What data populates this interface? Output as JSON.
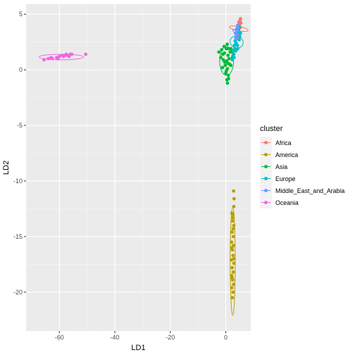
{
  "chart_data": {
    "type": "scatter",
    "title": "",
    "xlabel": "LD1",
    "ylabel": "LD2",
    "xlim": [
      -72,
      9
    ],
    "ylim": [
      -23.5,
      5.9
    ],
    "xticks": [
      -60,
      -40,
      -20,
      0
    ],
    "yticks": [
      5,
      0,
      -5,
      -10,
      -15,
      -20
    ],
    "grid": true,
    "background": "#ebebeb",
    "legend": {
      "title": "cluster",
      "placement": "right",
      "entries": [
        "Africa",
        "America",
        "Asia",
        "Europe",
        "Middle_East_and_Arabia",
        "Oceania"
      ]
    },
    "series": [
      {
        "name": "Africa",
        "color": "#F8766D",
        "points": [
          [
            4.2,
            3.2
          ],
          [
            4.6,
            3.6
          ],
          [
            4.9,
            4.1
          ],
          [
            5.1,
            4.4
          ],
          [
            5.3,
            4.6
          ],
          [
            4.4,
            3.9
          ],
          [
            4.8,
            3.4
          ],
          [
            5.2,
            3.8
          ],
          [
            4.0,
            2.9
          ],
          [
            4.7,
            4.3
          ],
          [
            5.0,
            3.0
          ],
          [
            4.3,
            3.5
          ],
          [
            5.4,
            4.2
          ],
          [
            4.5,
            4.0
          ],
          [
            3.9,
            3.3
          ],
          [
            4.8,
            2.8
          ]
        ],
        "ellipse": {
          "cx": 4.7,
          "cy": 3.7,
          "rx": 0.8,
          "ry": 0.85,
          "angle": -80
        }
      },
      {
        "name": "America",
        "color": "#B79F00",
        "points": [
          [
            2.8,
            -10.9
          ],
          [
            3.0,
            -11.6
          ],
          [
            2.9,
            -12.3
          ],
          [
            2.2,
            -12.9
          ],
          [
            2.6,
            -13.0
          ],
          [
            2.4,
            -13.6
          ],
          [
            2.9,
            -14.0
          ],
          [
            2.3,
            -14.6
          ],
          [
            2.7,
            -15.0
          ],
          [
            2.1,
            -15.5
          ],
          [
            2.8,
            -15.8
          ],
          [
            2.4,
            -16.2
          ],
          [
            2.6,
            -16.7
          ],
          [
            2.0,
            -17.1
          ],
          [
            2.9,
            -17.4
          ],
          [
            2.3,
            -17.8
          ],
          [
            2.7,
            -18.2
          ],
          [
            2.1,
            -18.5
          ],
          [
            2.5,
            -18.9
          ],
          [
            2.8,
            -19.3
          ],
          [
            2.2,
            -19.6
          ],
          [
            2.6,
            -20.0
          ],
          [
            2.4,
            -20.5
          ],
          [
            2.7,
            -14.3
          ],
          [
            2.2,
            -16.0
          ],
          [
            2.9,
            -17.0
          ],
          [
            2.5,
            -13.3
          ],
          [
            2.3,
            -18.7
          ]
        ],
        "ellipse": {
          "cx": 2.5,
          "cy": -17.2,
          "rx": 0.9,
          "ry": 4.9,
          "angle": 0
        }
      },
      {
        "name": "Asia",
        "color": "#00BA38",
        "points": [
          [
            -2.5,
            1.6
          ],
          [
            -1.5,
            1.8
          ],
          [
            -0.5,
            1.5
          ],
          [
            0.2,
            1.9
          ],
          [
            0.8,
            1.3
          ],
          [
            1.6,
            1.6
          ],
          [
            -1.8,
            1.1
          ],
          [
            -0.9,
            0.9
          ],
          [
            0.3,
            0.8
          ],
          [
            1.2,
            1.0
          ],
          [
            -0.2,
            0.4
          ],
          [
            0.6,
            0.1
          ],
          [
            1.4,
            0.5
          ],
          [
            -1.2,
            0.2
          ],
          [
            0.0,
            -0.3
          ],
          [
            0.9,
            -0.5
          ],
          [
            0.4,
            -0.9
          ],
          [
            1.0,
            -0.8
          ],
          [
            0.6,
            -1.2
          ],
          [
            2.3,
            1.6
          ],
          [
            1.9,
            1.9
          ],
          [
            -0.6,
            2.1
          ],
          [
            0.5,
            2.3
          ],
          [
            1.1,
            1.9
          ],
          [
            -1.1,
            1.4
          ],
          [
            2.4,
            1.1
          ],
          [
            1.8,
            0.4
          ],
          [
            0.2,
            -0.1
          ],
          [
            -0.4,
            0.7
          ],
          [
            0.7,
            0.6
          ]
        ],
        "ellipse": {
          "cx": 0.3,
          "cy": 0.8,
          "rx": 2.5,
          "ry": 1.3,
          "angle": 0
        }
      },
      {
        "name": "Europe",
        "color": "#00BFC4",
        "points": [
          [
            2.4,
            0.9
          ],
          [
            2.9,
            1.4
          ],
          [
            3.3,
            1.9
          ],
          [
            3.7,
            2.4
          ],
          [
            4.1,
            2.9
          ],
          [
            4.5,
            3.4
          ],
          [
            4.9,
            3.9
          ],
          [
            5.3,
            3.3
          ],
          [
            3.0,
            1.1
          ],
          [
            3.6,
            1.7
          ],
          [
            4.2,
            2.2
          ],
          [
            4.8,
            2.7
          ],
          [
            3.9,
            3.1
          ],
          [
            4.6,
            3.6
          ],
          [
            2.7,
            1.7
          ],
          [
            3.4,
            2.6
          ],
          [
            5.0,
            3.0
          ],
          [
            4.3,
            1.9
          ],
          [
            3.1,
            2.2
          ],
          [
            2.6,
            1.3
          ]
        ],
        "ellipse": {
          "cx": 3.9,
          "cy": 2.5,
          "rx": 2.1,
          "ry": 0.6,
          "angle": -68
        }
      },
      {
        "name": "Middle_East_and_Arabia",
        "color": "#619CFF",
        "points": [
          [
            3.6,
            2.8
          ],
          [
            3.9,
            3.2
          ],
          [
            4.2,
            3.5
          ],
          [
            4.4,
            3.8
          ],
          [
            3.8,
            3.6
          ],
          [
            4.1,
            2.9
          ],
          [
            3.5,
            3.3
          ],
          [
            4.3,
            4.0
          ],
          [
            3.7,
            3.0
          ],
          [
            4.0,
            3.7
          ]
        ],
        "ellipse": {
          "cx": 3.9,
          "cy": 3.4,
          "rx": 0.6,
          "ry": 0.4,
          "angle": -60
        }
      },
      {
        "name": "Oceania",
        "color": "#F564E3",
        "points": [
          [
            -65.5,
            0.9
          ],
          [
            -64.0,
            1.0
          ],
          [
            -62.5,
            1.0
          ],
          [
            -61.0,
            1.1
          ],
          [
            -60.0,
            1.2
          ],
          [
            -59.0,
            1.3
          ],
          [
            -58.0,
            1.3
          ],
          [
            -57.0,
            1.3
          ],
          [
            -56.0,
            1.4
          ],
          [
            -55.5,
            1.4
          ],
          [
            -58.5,
            1.2
          ],
          [
            -57.5,
            1.4
          ],
          [
            -56.5,
            1.2
          ],
          [
            -63.0,
            1.1
          ],
          [
            -60.5,
            1.0
          ],
          [
            -50.5,
            1.4
          ]
        ],
        "ellipse": {
          "cx": -59.3,
          "cy": 1.15,
          "rx": 8.0,
          "ry": 0.25,
          "angle": 0
        }
      }
    ]
  }
}
